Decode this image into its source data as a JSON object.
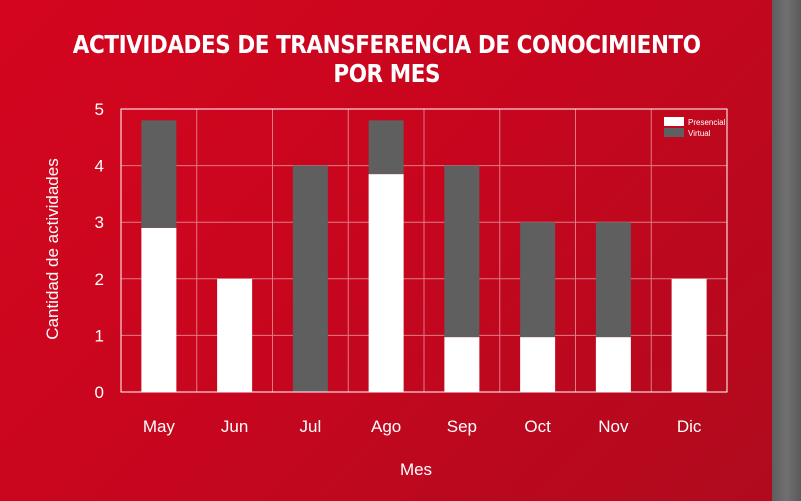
{
  "chart_data": {
    "type": "bar",
    "stacked": true,
    "title": "ACTIVIDADES DE TRANSFERENCIA DE CONOCIMIENTO POR MES",
    "xlabel": "Mes",
    "ylabel": "Cantidad de actividades",
    "ylim": [
      0,
      5
    ],
    "yticks": [
      "0",
      "1",
      "2",
      "3",
      "4",
      "5"
    ],
    "grid": true,
    "legend_position": "top-right",
    "categories": [
      "May",
      "Jun",
      "Jul",
      "Ago",
      "Sep",
      "Oct",
      "Nov",
      "Dic"
    ],
    "series": [
      {
        "name": "Presencial",
        "color": "#ffffff",
        "values": [
          2.9,
          2,
          0,
          3.85,
          0.97,
          0.97,
          0.97,
          2
        ]
      },
      {
        "name": "Virtual",
        "color": "#5f5f5f",
        "values": [
          1.9,
          0,
          4,
          0.95,
          3.03,
          2.03,
          2.03,
          0
        ]
      }
    ]
  },
  "colors": {
    "background": "#c8061e",
    "grid": "#e07a85",
    "frame": "#ffffff"
  }
}
